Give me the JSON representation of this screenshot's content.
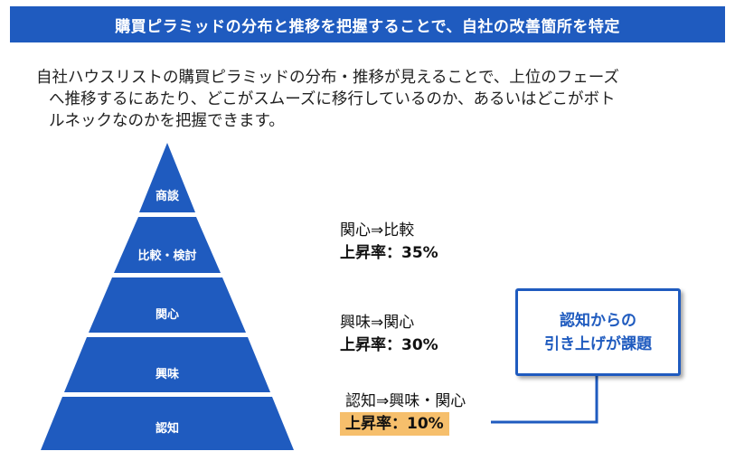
{
  "header": {
    "title": "購買ピラミッドの分布と推移を把握することで、自社の改善箇所を特定"
  },
  "description": {
    "line1": "自社ハウスリストの購買ピラミッドの分布・推移が見えることで、上位のフェーズ",
    "line2": "へ推移するにあたり、どこがスムーズに移行しているのか、あるいはどこがボト",
    "line3": "ルネックなのかを把握できます。"
  },
  "pyramid": {
    "levels": [
      "商談",
      "比較・検討",
      "関心",
      "興味",
      "認知"
    ],
    "color": "#1f5bbf"
  },
  "transitions": [
    {
      "label": "関心⇒比較",
      "rate": "上昇率：35%",
      "highlight": false
    },
    {
      "label": "興味⇒関心",
      "rate": "上昇率：30%",
      "highlight": false
    },
    {
      "label": "認知⇒興味・関心",
      "rate": "上昇率：10%",
      "highlight": true
    }
  ],
  "callout": {
    "line1": "認知からの",
    "line2": "引き上げが課題"
  },
  "colors": {
    "accent": "#1f5bbf",
    "highlight": "#f6bf6c"
  }
}
